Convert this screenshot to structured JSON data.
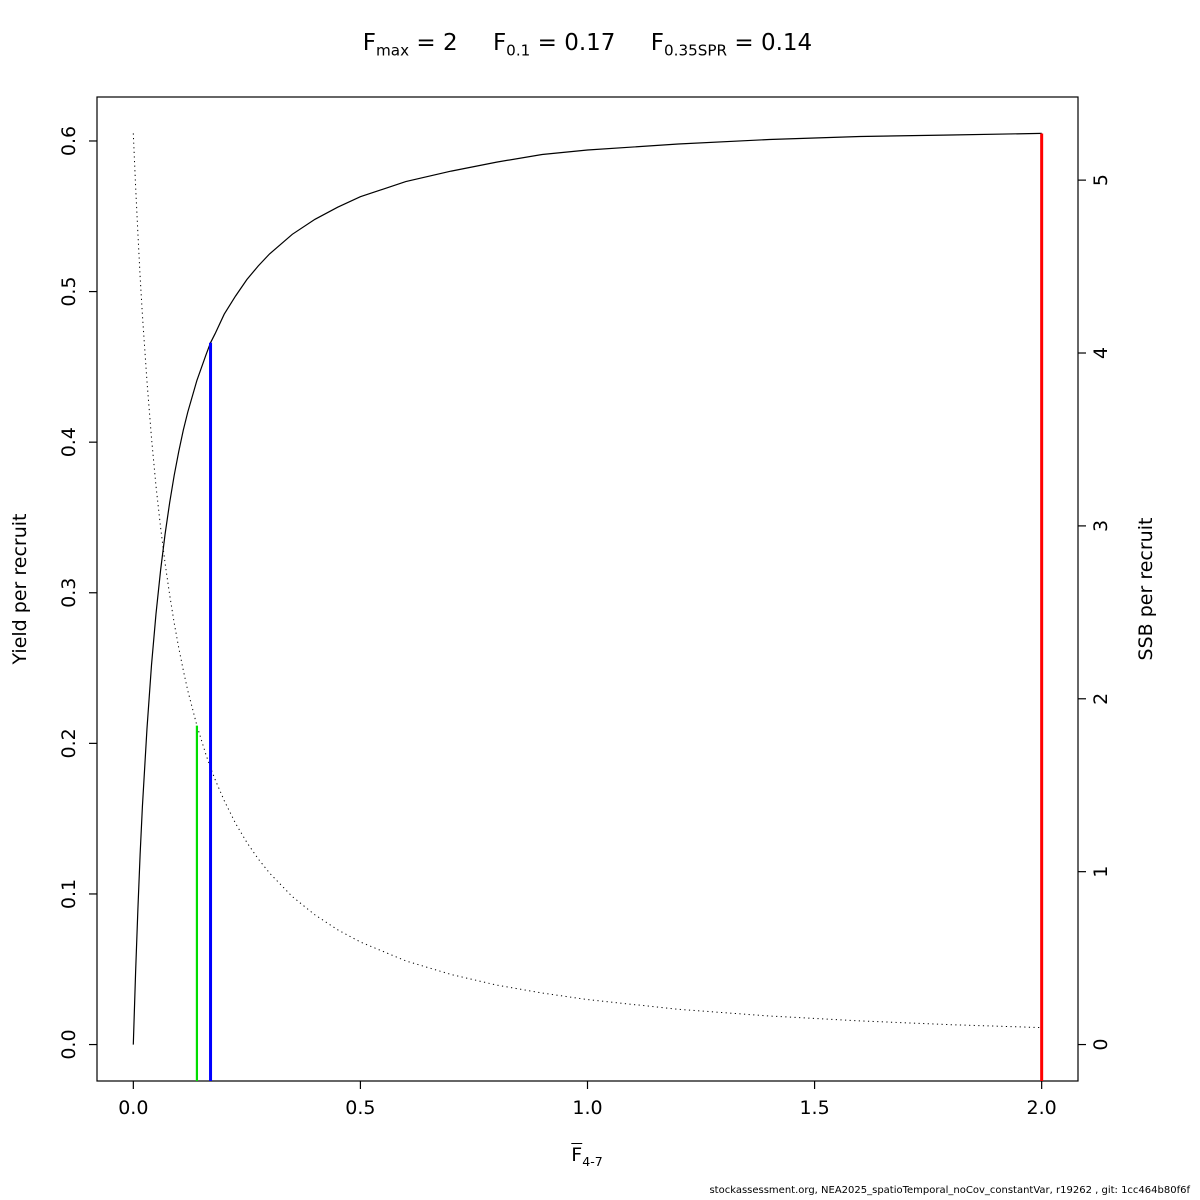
{
  "chart_data": {
    "type": "line",
    "title": "Fmax = 2    F0.1 = 0.17    F0.35SPR = 0.14",
    "title_parts": [
      {
        "base": "F",
        "sub": "max",
        "rest": " = 2"
      },
      {
        "base": "F",
        "sub": "0.1",
        "rest": " = 0.17"
      },
      {
        "base": "F",
        "sub": "0.35SPR",
        "rest": " = 0.14"
      }
    ],
    "xlabel": {
      "base": "F",
      "sub": "4-7",
      "overline": true
    },
    "ylabel_left": "Yield per recruit",
    "ylabel_right": "SSB per recruit",
    "xlim": [
      0,
      2
    ],
    "ylim_left": [
      0,
      0.605
    ],
    "ylim_right": [
      0,
      5.27
    ],
    "grid": false,
    "legend": "none",
    "xticks": [
      0,
      0.5,
      1,
      1.5,
      2
    ],
    "xtick_labels": [
      "0.0",
      "0.5",
      "1.0",
      "1.5",
      "2.0"
    ],
    "ytick_left_values": [
      0,
      0.1,
      0.2,
      0.3,
      0.4,
      0.5,
      0.6
    ],
    "ytick_left_labels": [
      "0.0",
      "0.1",
      "0.2",
      "0.3",
      "0.4",
      "0.5",
      "0.6"
    ],
    "ytick_right_values": [
      0,
      1,
      2,
      3,
      4,
      5
    ],
    "ytick_right_labels": [
      "0",
      "1",
      "2",
      "3",
      "4",
      "5"
    ],
    "x": [
      0,
      0.005,
      0.01,
      0.015,
      0.02,
      0.03,
      0.04,
      0.05,
      0.06,
      0.07,
      0.08,
      0.09,
      0.1,
      0.11,
      0.12,
      0.14,
      0.16,
      0.17,
      0.18,
      0.2,
      0.225,
      0.25,
      0.275,
      0.3,
      0.35,
      0.4,
      0.45,
      0.5,
      0.6,
      0.7,
      0.8,
      0.9,
      1.0,
      1.2,
      1.4,
      1.6,
      1.8,
      2.0
    ],
    "series": [
      {
        "name": "Yield per recruit",
        "axis": "left",
        "line_style": "solid",
        "color": "#000000",
        "values": [
          0,
          0.048,
          0.09,
          0.126,
          0.158,
          0.21,
          0.252,
          0.286,
          0.315,
          0.339,
          0.36,
          0.378,
          0.394,
          0.408,
          0.42,
          0.441,
          0.458,
          0.466,
          0.472,
          0.485,
          0.497,
          0.508,
          0.517,
          0.525,
          0.538,
          0.548,
          0.556,
          0.563,
          0.573,
          0.58,
          0.586,
          0.591,
          0.594,
          0.598,
          0.601,
          0.603,
          0.604,
          0.605
        ]
      },
      {
        "name": "SSB per recruit",
        "axis": "right",
        "line_style": "dotted",
        "color": "#000000",
        "values": [
          5.27,
          4.964,
          4.691,
          4.444,
          4.221,
          3.834,
          3.508,
          3.23,
          2.991,
          2.783,
          2.6,
          2.438,
          2.293,
          2.164,
          2.047,
          1.845,
          1.676,
          1.602,
          1.533,
          1.411,
          1.28,
          1.169,
          1.074,
          0.992,
          0.856,
          0.75,
          0.664,
          0.593,
          0.484,
          0.405,
          0.344,
          0.298,
          0.26,
          0.204,
          0.165,
          0.137,
          0.115,
          0.098
        ]
      }
    ],
    "ref_lines": [
      {
        "id": "fmax",
        "name": "Fmax",
        "x": 2.0,
        "top": 0.605,
        "axis": "left",
        "color": "#FF0000",
        "width": 3
      },
      {
        "id": "f01",
        "name": "F0.1",
        "x": 0.17,
        "top": 0.466,
        "axis": "left",
        "color": "#0000FF",
        "width": 3
      },
      {
        "id": "f035spr",
        "name": "F0.35SPR",
        "x": 0.14,
        "top": 1.845,
        "axis": "right",
        "color": "#00DD00",
        "width": 2.2
      }
    ]
  },
  "footer": {
    "text": "stockassessment.org, NEA2025_spatioTemporal_noCov_constantVar, r19262 , git: 1cc464b80f6f"
  }
}
